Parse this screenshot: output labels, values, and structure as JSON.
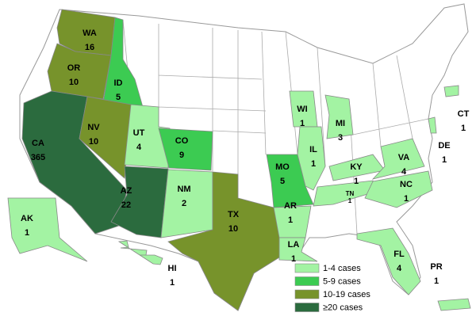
{
  "states": [
    {
      "abbr": "WA",
      "cases": 16,
      "color": "#77932b"
    },
    {
      "abbr": "OR",
      "cases": 10,
      "color": "#77932b"
    },
    {
      "abbr": "ID",
      "cases": 5,
      "color": "#3ccb52"
    },
    {
      "abbr": "CA",
      "cases": 365,
      "color": "#2b6b3e"
    },
    {
      "abbr": "NV",
      "cases": 10,
      "color": "#77932b"
    },
    {
      "abbr": "UT",
      "cases": 4,
      "color": "#a3f3a3"
    },
    {
      "abbr": "AZ",
      "cases": 22,
      "color": "#2b6b3e"
    },
    {
      "abbr": "CO",
      "cases": 9,
      "color": "#3ccb52"
    },
    {
      "abbr": "NM",
      "cases": 2,
      "color": "#a3f3a3"
    },
    {
      "abbr": "TX",
      "cases": 10,
      "color": "#77932b"
    },
    {
      "abbr": "MO",
      "cases": 5,
      "color": "#3ccb52"
    },
    {
      "abbr": "AR",
      "cases": 1,
      "color": "#a3f3a3"
    },
    {
      "abbr": "LA",
      "cases": 1,
      "color": "#a3f3a3"
    },
    {
      "abbr": "WI",
      "cases": 1,
      "color": "#a3f3a3"
    },
    {
      "abbr": "MI",
      "cases": 3,
      "color": "#a3f3a3"
    },
    {
      "abbr": "IL",
      "cases": 1,
      "color": "#a3f3a3"
    },
    {
      "abbr": "KY",
      "cases": 1,
      "color": "#a3f3a3"
    },
    {
      "abbr": "TN",
      "cases": 1,
      "color": "#a3f3a3"
    },
    {
      "abbr": "VA",
      "cases": 4,
      "color": "#a3f3a3"
    },
    {
      "abbr": "NC",
      "cases": 1,
      "color": "#a3f3a3"
    },
    {
      "abbr": "FL",
      "cases": 4,
      "color": "#a3f3a3"
    },
    {
      "abbr": "CT",
      "cases": 1,
      "color": "#a3f3a3"
    },
    {
      "abbr": "DE",
      "cases": 1,
      "color": "#a3f3a3"
    },
    {
      "abbr": "AK",
      "cases": 1,
      "color": "#a3f3a3"
    },
    {
      "abbr": "HI",
      "cases": 1,
      "color": "#a3f3a3"
    },
    {
      "abbr": "PR",
      "cases": 1,
      "color": "#a3f3a3"
    }
  ],
  "legend": [
    {
      "label": "1-4 cases",
      "color": "#a3f3a3"
    },
    {
      "label": "5-9 cases",
      "color": "#3ccb52"
    },
    {
      "label": "10-19 cases",
      "color": "#77932b"
    },
    {
      "label": "≥20 cases",
      "color": "#2b6b3e"
    }
  ]
}
